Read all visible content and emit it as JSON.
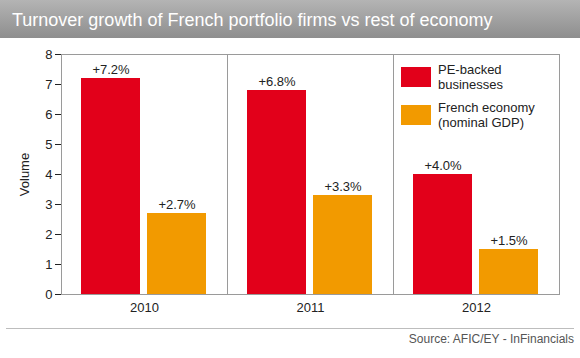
{
  "chart_data": {
    "type": "bar",
    "title": "Turnover growth of French portfolio firms vs rest of economy",
    "y_label": "Volume",
    "categories": [
      "2010",
      "2011",
      "2012"
    ],
    "series": [
      {
        "name": "PE-backed businesses",
        "color": "#e2001a",
        "values": [
          7.2,
          6.8,
          4.0
        ],
        "value_labels": [
          "+7.2%",
          "+6.8%",
          "+4.0%"
        ]
      },
      {
        "name": "French economy (nominal GDP)",
        "color": "#f29a00",
        "values": [
          2.7,
          3.3,
          1.5
        ],
        "value_labels": [
          "+2.7%",
          "+3.3%",
          "+1.5%"
        ]
      }
    ],
    "ylim": [
      0,
      8
    ],
    "yticks": [
      0,
      1,
      2,
      3,
      4,
      5,
      6,
      7,
      8
    ],
    "grid": false,
    "legend": "top-right",
    "data_labels": true,
    "source": "Source: AFIC/EY - InFinancials"
  }
}
